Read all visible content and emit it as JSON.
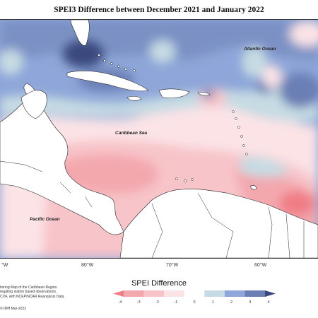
{
  "title": "SPEI3 Difference between December 2021 and January 2022",
  "labels": {
    "atlantic": "Atlantic Ocean",
    "caribbean": "Caribbean Sea",
    "pacific": "Pacific Ocean"
  },
  "longitudes": [
    {
      "text": "°W"
    },
    {
      "text": "80°W"
    },
    {
      "text": "70°W"
    },
    {
      "text": "60°W"
    }
  ],
  "legend": {
    "title": "SPEI Difference",
    "ticks": [
      "-4",
      "-3",
      "-2",
      "-1",
      "0",
      "1",
      "2",
      "3",
      "4"
    ],
    "colors": [
      "#f07d86",
      "#f3a8ae",
      "#f7c4c9",
      "#fbe3e6",
      "#ffffff",
      "#c6dbe3",
      "#8ea6d9",
      "#6b7fb5",
      "#3b4a7e"
    ]
  },
  "credits": {
    "line1": "itoring Map of the Caribbean Region.",
    "line2": "regating station based observations,",
    "line3": "COF, with NCEP/NCAR Reanalysis Data.",
    "copyright": "© IMH Mar-2022"
  },
  "palette": {
    "deep_blue": "#3b4a7e",
    "blue": "#6b7fb5",
    "light_blue": "#8ea6d9",
    "pale_blue": "#c6dbe3",
    "pale_pink": "#fbe3e6",
    "pink": "#f7c4c9",
    "mid_pink": "#f3a8ae",
    "red": "#f07d86",
    "land": "#ffffff"
  }
}
